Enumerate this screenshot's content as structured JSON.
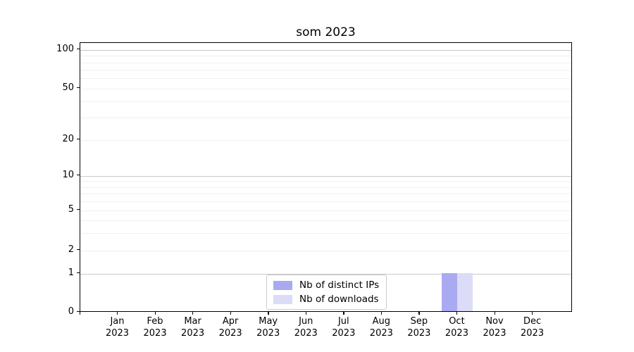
{
  "chart_data": {
    "type": "bar",
    "title": "som 2023",
    "categories": [
      "Jan 2023",
      "Feb 2023",
      "Mar 2023",
      "Apr 2023",
      "May 2023",
      "Jun 2023",
      "Jul 2023",
      "Aug 2023",
      "Sep 2023",
      "Oct 2023",
      "Nov 2023",
      "Dec 2023"
    ],
    "x_axis": {
      "months": [
        "Jan",
        "Feb",
        "Mar",
        "Apr",
        "May",
        "Jun",
        "Jul",
        "Aug",
        "Sep",
        "Oct",
        "Nov",
        "Dec"
      ],
      "year": "2023"
    },
    "y_axis": {
      "scale": "symlog",
      "tick_labels": [
        "0",
        "1",
        "2",
        "5",
        "10",
        "20",
        "50",
        "100"
      ],
      "tick_values": [
        0,
        1,
        2,
        5,
        10,
        20,
        50,
        100
      ],
      "major_gridline_values": [
        1,
        10,
        100
      ],
      "minor_gridline_values": [
        2,
        3,
        4,
        5,
        6,
        7,
        8,
        9,
        20,
        30,
        40,
        50,
        60,
        70,
        80,
        90
      ],
      "ylim": [
        0,
        113
      ],
      "grid": true
    },
    "series": [
      {
        "name": "Nb of distinct IPs",
        "color": "#aaaaf2",
        "values": [
          0,
          0,
          0,
          0,
          0,
          0,
          0,
          0,
          0,
          1,
          0,
          0
        ]
      },
      {
        "name": "Nb of downloads",
        "color": "#dcdcf8",
        "values": [
          0,
          0,
          0,
          0,
          0,
          0,
          0,
          0,
          0,
          1,
          0,
          0
        ]
      }
    ],
    "legend": {
      "position": "lower center",
      "entries": [
        "Nb of distinct IPs",
        "Nb of downloads"
      ]
    }
  },
  "colors": {
    "bar_distinct_ips": "#aaaaf2",
    "bar_downloads": "#dcdcf8",
    "grid_major": "#c9c9c9",
    "grid_minor": "#efefef",
    "axis": "#000000",
    "background": "#ffffff"
  }
}
